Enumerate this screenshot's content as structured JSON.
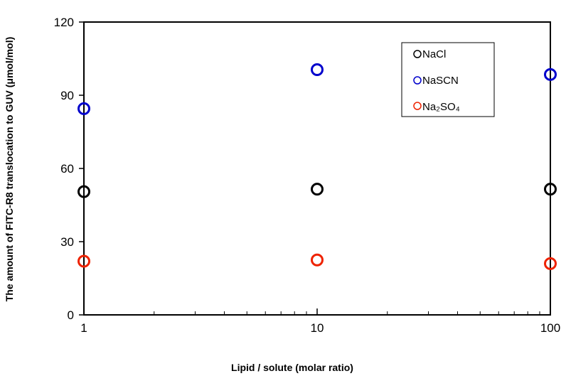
{
  "chart_data": {
    "type": "scatter",
    "xlabel": "Lipid / solute (molar ratio)",
    "ylabel": "The amount of FITC-R8 translocation to GUV (μmol/mol)",
    "xscale": "log",
    "xlim": [
      1,
      100
    ],
    "ylim": [
      0,
      120
    ],
    "x_ticks": [
      1,
      10,
      100
    ],
    "x_tick_labels": [
      "1",
      "10",
      "100"
    ],
    "y_ticks": [
      0,
      30,
      60,
      90,
      120
    ],
    "y_tick_labels": [
      "0",
      "30",
      "60",
      "90",
      "120"
    ],
    "grid": false,
    "legend_position": "top-right",
    "series": [
      {
        "name": "NaCl",
        "color": "#000000",
        "marker": "open-circle",
        "x": [
          1,
          10,
          100
        ],
        "y": [
          50.5,
          51.5,
          51.5
        ]
      },
      {
        "name": "NaSCN",
        "color": "#0000cc",
        "marker": "open-circle",
        "x": [
          1,
          10,
          100
        ],
        "y": [
          84.5,
          100.5,
          98.5
        ]
      },
      {
        "name": "Na₂SO₄",
        "color": "#ee2200",
        "marker": "open-circle",
        "x": [
          1,
          10,
          100
        ],
        "y": [
          22,
          22.5,
          21
        ]
      }
    ]
  }
}
